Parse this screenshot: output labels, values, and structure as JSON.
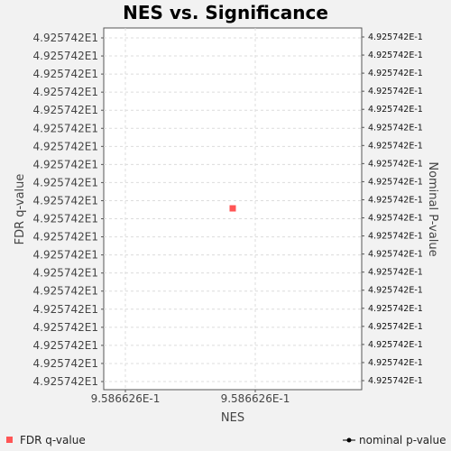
{
  "chart_data": {
    "type": "scatter",
    "title": "NES vs. Significance",
    "xlabel": "NES",
    "ylabel": "FDR q-value",
    "y2label": "Nominal P-value",
    "x_tick_labels": [
      "9.586626E-1",
      "9.586626E-1"
    ],
    "y_tick_labels": [
      "4.925742E1",
      "4.925742E1",
      "4.925742E1",
      "4.925742E1",
      "4.925742E1",
      "4.925742E1",
      "4.925742E1",
      "4.925742E1",
      "4.925742E1",
      "4.925742E1",
      "4.925742E1",
      "4.925742E1",
      "4.925742E1",
      "4.925742E1",
      "4.925742E1",
      "4.925742E1",
      "4.925742E1",
      "4.925742E1",
      "4.925742E1",
      "4.925742E1"
    ],
    "y2_tick_labels": [
      "4.925742E-1",
      "4.925742E-1",
      "4.925742E-1",
      "4.925742E-1",
      "4.925742E-1",
      "4.925742E-1",
      "4.925742E-1",
      "4.925742E-1",
      "4.925742E-1",
      "4.925742E-1",
      "4.925742E-1",
      "4.925742E-1",
      "4.925742E-1",
      "4.925742E-1",
      "4.925742E-1",
      "4.925742E-1",
      "4.925742E-1",
      "4.925742E-1",
      "4.925742E-1",
      "4.925742E-1"
    ],
    "series": [
      {
        "name": "FDR q-value",
        "color": "#ff5555",
        "marker": "square",
        "axis": "left",
        "points": [
          {
            "x": 0.9586626,
            "y": 49.25742
          }
        ]
      },
      {
        "name": "nominal p-value",
        "color": "#000000",
        "marker": "circle-line",
        "axis": "right",
        "points": []
      }
    ],
    "grid": true,
    "legend": "bottom"
  }
}
